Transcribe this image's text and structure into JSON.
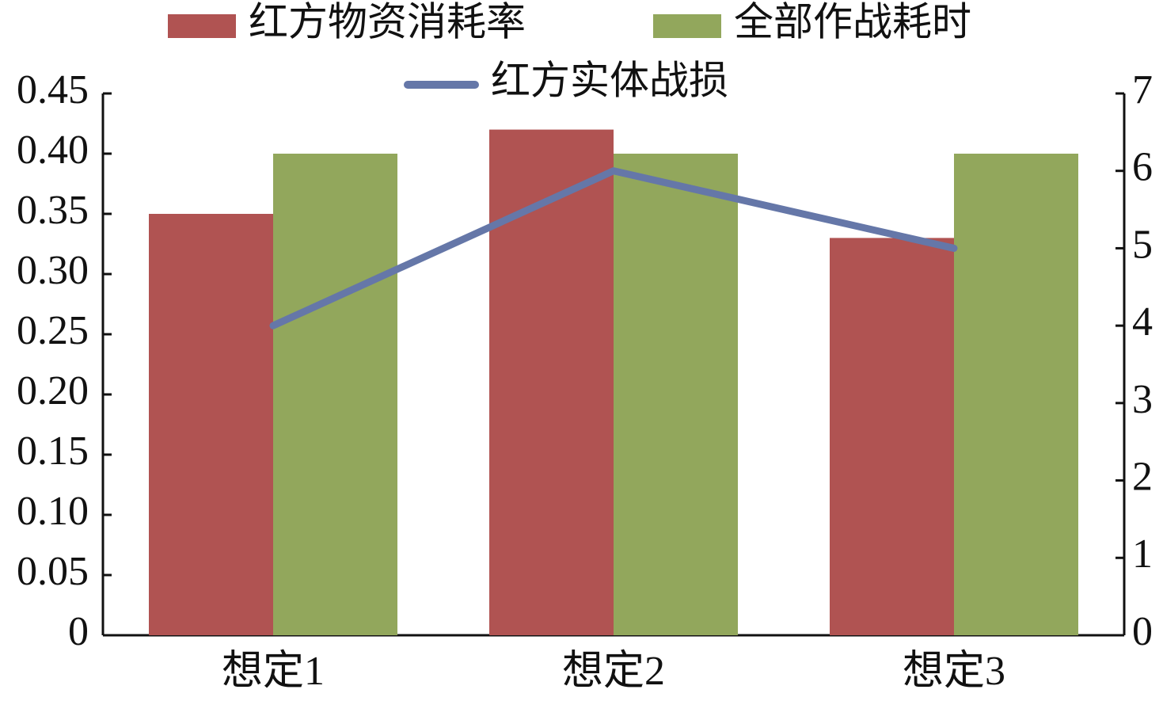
{
  "chart_data": {
    "type": "bar",
    "categories": [
      "想定1",
      "想定2",
      "想定3"
    ],
    "series": [
      {
        "name": "红方物资消耗率",
        "color": "#b05352",
        "values": [
          0.35,
          0.42,
          0.33
        ]
      },
      {
        "name": "全部作战耗时",
        "color": "#92a75c",
        "values": [
          0.4,
          0.4,
          0.4
        ]
      },
      {
        "name": "红方实体战损",
        "color": "#6577a8",
        "type": "line",
        "axis": "y2",
        "values": [
          4,
          6,
          5
        ]
      }
    ],
    "ylim": [
      0,
      0.45
    ],
    "yticks": [
      0,
      0.05,
      {
        "value": 0.1,
        "label": "0.10"
      },
      0.15,
      {
        "value": 0.2,
        "label": "0.20"
      },
      0.25,
      {
        "value": 0.3,
        "label": "0.30"
      },
      0.35,
      {
        "value": 0.4,
        "label": "0.40"
      },
      0.45
    ],
    "y2lim": [
      0,
      7
    ],
    "y2ticks": [
      0,
      1,
      2,
      3,
      4,
      5,
      6,
      7
    ],
    "grid": false
  }
}
